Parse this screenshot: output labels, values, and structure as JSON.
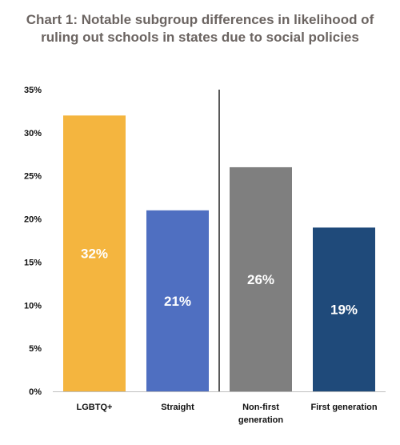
{
  "chart_data": {
    "type": "bar",
    "title_lines": [
      "Chart 1: Notable subgroup differences in likelihood of",
      "ruling out schools in states due to social policies"
    ],
    "categories": [
      [
        "LGBTQ+"
      ],
      [
        "Straight"
      ],
      [
        "Non-first",
        "generation"
      ],
      [
        "First generation"
      ]
    ],
    "values": [
      32,
      21,
      26,
      19
    ],
    "data_labels": [
      "32%",
      "21%",
      "26%",
      "19%"
    ],
    "colors": [
      "#F4B53F",
      "#4F6FC1",
      "#7F7F7F",
      "#1F4A7A"
    ],
    "ylim": [
      0,
      35
    ],
    "yticks": [
      0,
      5,
      10,
      15,
      20,
      25,
      30,
      35
    ],
    "ytick_labels": [
      "0%",
      "5%",
      "10%",
      "15%",
      "20%",
      "25%",
      "30%",
      "35%"
    ],
    "xlabel": "",
    "ylabel": "",
    "grid": false,
    "divider_after_category": 1
  }
}
